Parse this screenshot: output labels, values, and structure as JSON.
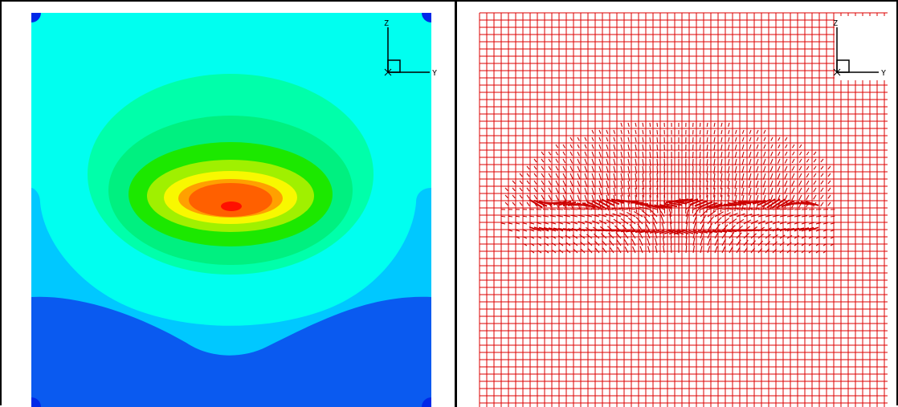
{
  "left_panel": {
    "colors": {
      "background": "#ffffff",
      "dark_blue": "#0a5af0",
      "light_blue": "#00c8ff",
      "cyan": "#00fff0",
      "aqua_green": "#00ffaa",
      "light_green": "#00f080",
      "green": "#1ce800",
      "yellow_green": "#a0f000",
      "yellow": "#f8f800",
      "orange": "#ffa000",
      "orange_red": "#ff6000",
      "red": "#ff1000",
      "corner_blue": "#0028e8"
    },
    "axis_triad": {
      "vertical_label": "Z",
      "horizontal_label": "Y"
    }
  },
  "right_panel": {
    "colors": {
      "grid": "#dd0000",
      "vectors": "#cc0000"
    },
    "axis_triad": {
      "vertical_label": "Z",
      "horizontal_label": "Y"
    }
  }
}
